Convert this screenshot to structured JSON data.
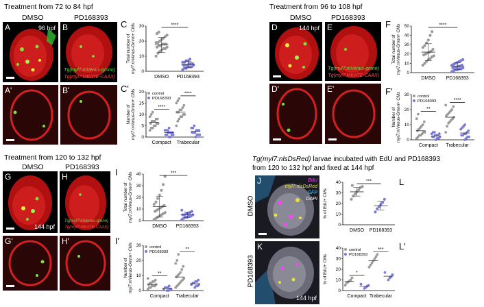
{
  "titles": {
    "t1": "Treatment from 72 to 84 hpf",
    "t2": "Treatment from 96 to 108 hpf",
    "t3": "Treatment from 120 to 132 hpf",
    "t4_line1_italic": "Tg(myl7:nlsDsRed)",
    "t4_line1_rest": " larvae incubated with EdU and PD168393",
    "t4_line2": "from 120 to 132 hpf and fixed at 144 hpf"
  },
  "conditions": {
    "dmso": "DMSO",
    "pd": "PD168393"
  },
  "panel_letters": {
    "A": "A",
    "B": "B",
    "A2": "A'",
    "B2": "B'",
    "C": "C",
    "C2": "C'",
    "D": "D",
    "E": "E",
    "D2": "D'",
    "E2": "E'",
    "F": "F",
    "F2": "F'",
    "G": "G",
    "H": "H",
    "G2": "G'",
    "H2": "H'",
    "I": "I",
    "I2": "I'",
    "J": "J",
    "K": "K",
    "L": "L",
    "L2": "L'"
  },
  "stamps": {
    "s96": "96 hpf",
    "s144": "144 hpf"
  },
  "legends": {
    "venus": "Tg(myl7:mVenus-gmnn)",
    "mkate": "Tg(myl7:MKATE-CAAX)",
    "edu": "EdU",
    "dsred": "myl7:nlsDsRed",
    "dapi": "DAPI",
    "gfp": "GFP"
  },
  "side_labels": {
    "dmso": "DMSO",
    "pd": "PD168393"
  },
  "colors": {
    "dmso": "#9a9a9a",
    "pd": "#7b7bdb",
    "hist_red": "#e01818",
    "hist_green": "#4fe03a"
  },
  "chart_data": [
    {
      "id": "C",
      "type": "scatter",
      "ylabel_line1": "Total number of",
      "ylabel_line2": "myl7:mVenus-Gmnn+ CMs",
      "ylim": [
        0,
        30
      ],
      "yticks": [
        0,
        10,
        20,
        30
      ],
      "categories": [
        "DMSO",
        "PD168393"
      ],
      "significance": [
        "****"
      ],
      "series": [
        {
          "name": "DMSO",
          "mean": 17.5,
          "sd": 5,
          "values": [
            10,
            12,
            13,
            14,
            15,
            15,
            16,
            16,
            17,
            17,
            18,
            18,
            18,
            19,
            19,
            20,
            21,
            22,
            23,
            24,
            25,
            26
          ]
        },
        {
          "name": "PD168393",
          "mean": 4.5,
          "sd": 2.2,
          "values": [
            1,
            2,
            2,
            3,
            3,
            3,
            4,
            4,
            4,
            4,
            5,
            5,
            5,
            6,
            6,
            7,
            7,
            8
          ]
        }
      ]
    },
    {
      "id": "C2",
      "type": "scatter",
      "ylabel_line1": "Number of",
      "ylabel_line2": "myl7:mVenus-Gmnn+ CMs",
      "ylim": [
        0,
        20
      ],
      "yticks": [
        0,
        5,
        10,
        15,
        20
      ],
      "categories": [
        "Compact",
        "Trabecular"
      ],
      "legend_entries": [
        "control",
        "PD168393"
      ],
      "significance": [
        "****",
        "****"
      ],
      "groups": [
        {
          "category": "Compact",
          "control": [
            3,
            4,
            4,
            5,
            5,
            6,
            6,
            6,
            7,
            7,
            7,
            8,
            8,
            9,
            10,
            11
          ],
          "pd": [
            0,
            0,
            1,
            1,
            1,
            1,
            2,
            2,
            2,
            2,
            3,
            3,
            3,
            4
          ],
          "control_mean": 6.5,
          "pd_mean": 2
        },
        {
          "category": "Trabecular",
          "control": [
            5,
            7,
            8,
            9,
            9,
            10,
            10,
            11,
            11,
            12,
            12,
            13,
            14,
            15,
            16,
            17
          ],
          "pd": [
            0,
            1,
            1,
            1,
            2,
            2,
            2,
            3,
            3,
            3,
            4,
            4,
            5
          ],
          "control_mean": 11,
          "pd_mean": 2.5
        }
      ]
    },
    {
      "id": "F",
      "type": "scatter",
      "ylabel_line1": "Total number of",
      "ylabel_line2": "myl7:mVenus-Gmnn+ CMs",
      "ylim": [
        0,
        50
      ],
      "yticks": [
        0,
        10,
        20,
        30,
        40,
        50
      ],
      "categories": [
        "DMSO",
        "PD168393"
      ],
      "significance": [
        "****"
      ],
      "series": [
        {
          "name": "DMSO",
          "mean": 22,
          "sd": 9,
          "values": [
            8,
            10,
            12,
            14,
            15,
            17,
            18,
            19,
            20,
            21,
            22,
            23,
            25,
            27,
            29,
            32,
            35,
            40,
            44
          ]
        },
        {
          "name": "PD168393",
          "mean": 7,
          "sd": 3.5,
          "values": [
            1,
            2,
            3,
            3,
            4,
            4,
            5,
            5,
            6,
            6,
            7,
            7,
            8,
            8,
            9,
            10,
            11,
            12,
            13,
            14
          ]
        }
      ]
    },
    {
      "id": "F2",
      "type": "scatter",
      "ylabel_line1": "Number of",
      "ylabel_line2": "myl7:mVenus-Gmnn+ CMs",
      "ylim": [
        0,
        30
      ],
      "yticks": [
        0,
        10,
        20,
        30
      ],
      "categories": [
        "Compact",
        "Trabecular"
      ],
      "legend_entries": [
        "control",
        "PD168393"
      ],
      "significance": [
        "**",
        "****"
      ],
      "groups": [
        {
          "category": "Compact",
          "control": [
            1,
            2,
            3,
            3,
            4,
            5,
            5,
            6,
            7,
            8,
            9,
            10,
            12,
            14,
            17
          ],
          "pd": [
            0,
            1,
            1,
            2,
            2,
            2,
            3,
            3,
            3,
            4,
            4,
            5,
            5
          ],
          "control_mean": 6,
          "pd_mean": 2.5
        },
        {
          "category": "Trabecular",
          "control": [
            5,
            9,
            11,
            12,
            13,
            14,
            15,
            16,
            17,
            18,
            19,
            20,
            22,
            23
          ],
          "pd": [
            0,
            1,
            2,
            2,
            3,
            3,
            4,
            4,
            5,
            6,
            7,
            8,
            9,
            10
          ],
          "control_mean": 15,
          "pd_mean": 4.5
        }
      ]
    },
    {
      "id": "I",
      "type": "scatter",
      "ylabel_line1": "Total number of",
      "ylabel_line2": "myl7:mVenus-Gmnn+ CMs",
      "ylim": [
        0,
        40
      ],
      "yticks": [
        0,
        10,
        20,
        30,
        40
      ],
      "categories": [
        "DMSO",
        "PD168393"
      ],
      "significance": [
        "***"
      ],
      "series": [
        {
          "name": "DMSO",
          "mean": 12,
          "sd": 9,
          "values": [
            1,
            2,
            3,
            4,
            5,
            6,
            7,
            8,
            9,
            10,
            11,
            12,
            13,
            14,
            16,
            19,
            22,
            26,
            31,
            38
          ]
        },
        {
          "name": "PD168393",
          "mean": 5,
          "sd": 2.5,
          "values": [
            1,
            2,
            3,
            3,
            4,
            4,
            5,
            5,
            5,
            6,
            6,
            7,
            8,
            9
          ]
        }
      ]
    },
    {
      "id": "I2",
      "type": "scatter",
      "ylabel_line1": "Number of",
      "ylabel_line2": "myl7:mVenus-Gmnn+ CMs",
      "ylim": [
        0,
        30
      ],
      "yticks": [
        0,
        10,
        20,
        30
      ],
      "categories": [
        "Compact",
        "Trabecular"
      ],
      "legend_entries": [
        "control",
        "PD168393"
      ],
      "significance": [
        "**",
        "**"
      ],
      "groups": [
        {
          "category": "Compact",
          "control": [
            1,
            2,
            2,
            3,
            3,
            3,
            4,
            4,
            5,
            5,
            6,
            6,
            7,
            8
          ],
          "pd": [
            0,
            0,
            1,
            1,
            1,
            2,
            2,
            2,
            3
          ],
          "control_mean": 4,
          "pd_mean": 1.5
        },
        {
          "category": "Trabecular",
          "control": [
            2,
            3,
            4,
            5,
            6,
            7,
            8,
            9,
            10,
            11,
            12,
            14,
            16,
            18,
            20,
            24
          ],
          "pd": [
            2,
            3,
            3,
            4,
            4,
            5,
            5,
            6,
            6,
            7
          ],
          "control_mean": 9,
          "pd_mean": 4.5
        }
      ]
    },
    {
      "id": "L",
      "type": "scatter",
      "ylabel_line1": "% of EdU+ CMs",
      "ylabel_line2": "",
      "ylim": [
        0,
        40
      ],
      "yticks": [
        0,
        10,
        20,
        30,
        40
      ],
      "categories": [
        "DMSO",
        "PD168393"
      ],
      "significance": [
        "***"
      ],
      "series": [
        {
          "name": "DMSO",
          "mean": 31,
          "sd": 4,
          "values": [
            24,
            27,
            29,
            31,
            33,
            35,
            36,
            37
          ]
        },
        {
          "name": "PD168393",
          "mean": 18,
          "sd": 4,
          "values": [
            12,
            15,
            17,
            19,
            21,
            24
          ]
        }
      ]
    },
    {
      "id": "L2",
      "type": "scatter",
      "ylabel_line1": "% of EdU+ CMs",
      "ylabel_line2": "",
      "ylim": [
        0,
        40
      ],
      "yticks": [
        0,
        10,
        20,
        30,
        40
      ],
      "categories": [
        "Compact",
        "Trabecular"
      ],
      "legend_entries": [
        "control",
        "PD168393"
      ],
      "significance": [
        "*",
        "***"
      ],
      "groups": [
        {
          "category": "Compact",
          "control": [
            5,
            7,
            8,
            9,
            10,
            12
          ],
          "pd": [
            2,
            3,
            4,
            5,
            6
          ],
          "control_mean": 8.5,
          "pd_mean": 4
        },
        {
          "category": "Trabecular",
          "control": [
            22,
            24,
            26,
            28,
            30,
            32,
            34
          ],
          "pd": [
            10,
            12,
            13,
            15,
            17
          ],
          "control_mean": 28,
          "pd_mean": 13.5
        }
      ]
    }
  ]
}
